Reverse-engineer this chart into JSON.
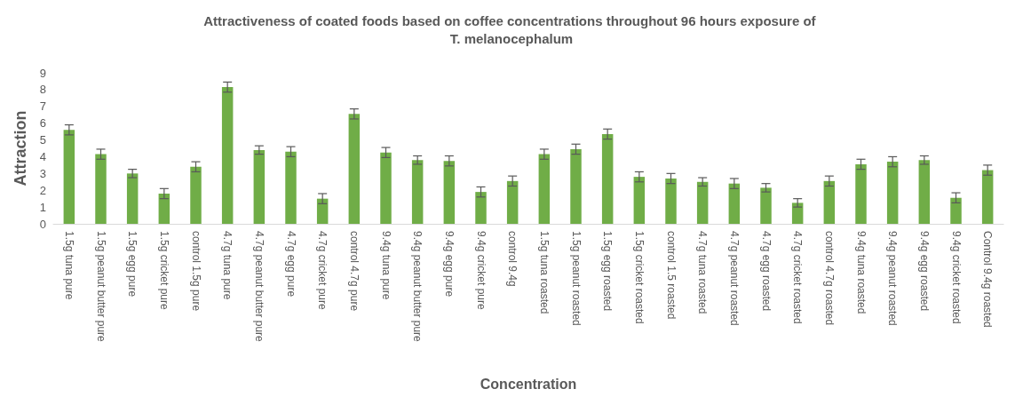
{
  "chart_data": {
    "type": "bar",
    "title": "Attractiveness of coated foods based on coffee concentrations throughout 96 hours exposure of T. melanocephalum",
    "xlabel": "Concentration",
    "ylabel": "Attraction",
    "categories": [
      "1.5g tuna pure",
      "1.5g peanut butter pure",
      "1.5g egg pure",
      "1.5g cricket pure",
      "control 1.5g pure",
      "4.7g tuna pure",
      "4.7g peanut butter pure",
      "4.7g egg pure",
      "4.7g cricket pure",
      "control 4.7g pure",
      "9.4g tuna pure",
      "9.4g peanut butter pure",
      "9.4g egg pure",
      "9.4g cricket pure",
      "control 9.4g",
      "1.5g tuna roasted",
      "1.5g peanut roasted",
      "1.5g egg roasted",
      "1.5g cricket roasted",
      "control 1.5 roasted",
      "4.7g tuna roasted",
      "4.7g peanut roasted",
      "4.7g egg roasted",
      "4.7g cricket roasted",
      "control 4.7g roasted",
      "9.4g tuna roasted",
      "9.4g peanut roasted",
      "9.4g egg roasted",
      "9.4g cricket roasted",
      "Control 9.4g roasted"
    ],
    "values": [
      5.6,
      4.15,
      3.0,
      1.8,
      3.4,
      8.15,
      4.4,
      4.3,
      1.5,
      6.55,
      4.25,
      3.8,
      3.75,
      1.9,
      2.55,
      4.15,
      4.45,
      5.35,
      2.8,
      2.7,
      2.5,
      2.4,
      2.15,
      1.25,
      2.55,
      3.55,
      3.7,
      3.8,
      1.55,
      3.2
    ],
    "errors": [
      0.3,
      0.3,
      0.25,
      0.3,
      0.3,
      0.3,
      0.25,
      0.3,
      0.3,
      0.3,
      0.3,
      0.25,
      0.3,
      0.3,
      0.3,
      0.3,
      0.3,
      0.3,
      0.3,
      0.3,
      0.25,
      0.3,
      0.25,
      0.25,
      0.3,
      0.3,
      0.3,
      0.25,
      0.3,
      0.3
    ],
    "color": "#70ad47",
    "ylim": [
      0,
      9
    ],
    "yticks": [
      0,
      1,
      2,
      3,
      4,
      5,
      6,
      7,
      8,
      9
    ],
    "grid": false
  }
}
